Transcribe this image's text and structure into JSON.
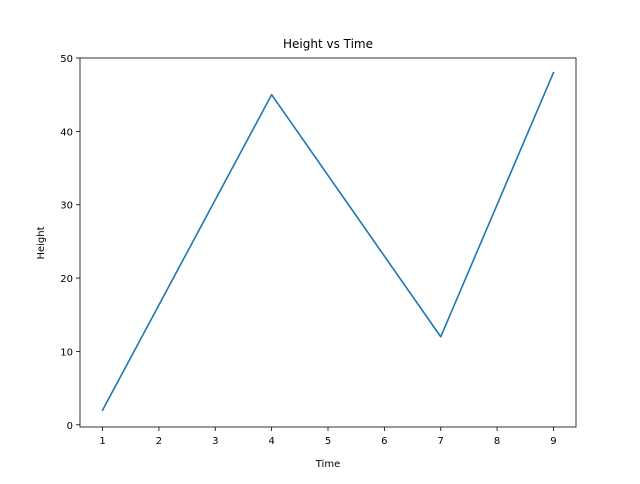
{
  "chart_data": {
    "type": "line",
    "title": "Height vs Time",
    "xlabel": "Time",
    "ylabel": "Height",
    "xlim": [
      0.6,
      9.4
    ],
    "ylim": [
      -0.3,
      50
    ],
    "xticks": [
      1,
      2,
      3,
      4,
      5,
      6,
      7,
      8,
      9
    ],
    "yticks": [
      0,
      10,
      20,
      30,
      40,
      50
    ],
    "grid": false,
    "series": [
      {
        "color": "#1f77b4",
        "x": [
          1,
          4,
          7,
          9
        ],
        "y": [
          2,
          45,
          12,
          48
        ]
      }
    ]
  }
}
